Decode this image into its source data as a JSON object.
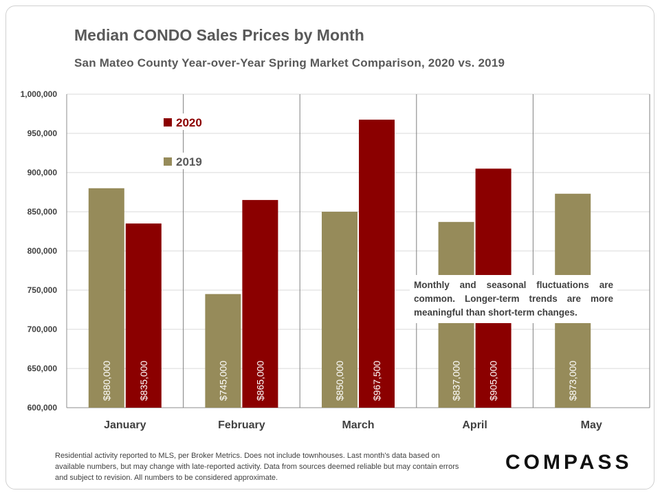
{
  "title": "Median CONDO Sales Prices by Month",
  "subtitle": "San Mateo County Year-over-Year Spring Market Comparison,  2020 vs. 2019",
  "annotation": "Monthly and seasonal fluctuations are common. Longer-term trends are more meaningful than short-term changes.",
  "footnote": "Residential activity reported to MLS, per Broker Metrics. Does not include townhouses. Last month's data based on available numbers, but may change with late-reported activity. Data from sources deemed reliable but may contain errors and subject to revision. All numbers to be considered approximate.",
  "brand": "COMPASS",
  "colors": {
    "s2019": "#968B5A",
    "s2020": "#8B0000"
  },
  "chart_data": {
    "type": "bar",
    "categories": [
      "January",
      "February",
      "March",
      "April",
      "May"
    ],
    "series": [
      {
        "name": "2019",
        "values": [
          880000,
          745000,
          850000,
          837000,
          873000
        ],
        "labels": [
          "$880,000",
          "$745,000",
          "$850,000",
          "$837,000",
          "$873,000"
        ]
      },
      {
        "name": "2020",
        "values": [
          835000,
          865000,
          967500,
          905000,
          null
        ],
        "labels": [
          "$835,000",
          "$865,000",
          "$967,500",
          "$905,000",
          ""
        ]
      }
    ],
    "ylim": [
      600000,
      1000000
    ],
    "yticks": [
      600000,
      650000,
      700000,
      750000,
      800000,
      850000,
      900000,
      950000,
      1000000
    ],
    "ytick_labels": [
      "600,000",
      "650,000",
      "700,000",
      "750,000",
      "800,000",
      "850,000",
      "900,000",
      "950,000",
      "1,000,000"
    ],
    "legend_order": [
      "2020",
      "2019"
    ],
    "grid": true
  }
}
